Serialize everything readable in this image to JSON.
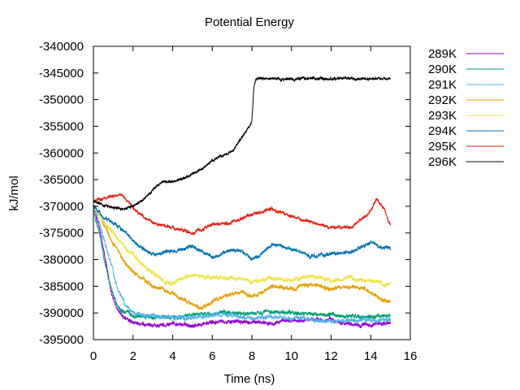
{
  "chart_data": {
    "type": "line",
    "title": "Potential Energy",
    "xlabel": "Time (ns)",
    "ylabel": "kJ/mol",
    "xlim": [
      0,
      16
    ],
    "ylim": [
      -395000,
      -340000
    ],
    "xticks": [
      0,
      2,
      4,
      6,
      8,
      10,
      12,
      14,
      16
    ],
    "yticks": [
      -340000,
      -345000,
      -350000,
      -355000,
      -360000,
      -365000,
      -370000,
      -375000,
      -380000,
      -385000,
      -390000,
      -395000
    ],
    "grid": false,
    "legend_position": "outside-right",
    "series": [
      {
        "name": "289K",
        "color": "#9400d3",
        "noise": 600,
        "points": [
          [
            0,
            -370000
          ],
          [
            0.3,
            -374000
          ],
          [
            0.6,
            -380000
          ],
          [
            0.9,
            -386000
          ],
          [
            1.2,
            -389500
          ],
          [
            1.6,
            -391000
          ],
          [
            2.0,
            -392000
          ],
          [
            3,
            -392500
          ],
          [
            4,
            -392000
          ],
          [
            5,
            -392300
          ],
          [
            6,
            -391800
          ],
          [
            7,
            -391500
          ],
          [
            8,
            -391800
          ],
          [
            9,
            -391700
          ],
          [
            10,
            -391500
          ],
          [
            11,
            -391200
          ],
          [
            12,
            -391300
          ],
          [
            13,
            -392000
          ],
          [
            14,
            -392300
          ],
          [
            15,
            -391800
          ]
        ]
      },
      {
        "name": "290K",
        "color": "#009e73",
        "noise": 600,
        "points": [
          [
            0,
            -371000
          ],
          [
            0.3,
            -375000
          ],
          [
            0.6,
            -381000
          ],
          [
            0.9,
            -385500
          ],
          [
            1.2,
            -388500
          ],
          [
            1.6,
            -390000
          ],
          [
            2.0,
            -390500
          ],
          [
            3,
            -390800
          ],
          [
            4,
            -390800
          ],
          [
            5,
            -390500
          ],
          [
            6,
            -390200
          ],
          [
            7,
            -389800
          ],
          [
            8,
            -390300
          ],
          [
            9,
            -389700
          ],
          [
            10,
            -390000
          ],
          [
            11,
            -390200
          ],
          [
            12,
            -390500
          ],
          [
            13,
            -390600
          ],
          [
            14,
            -390800
          ],
          [
            15,
            -390500
          ]
        ]
      },
      {
        "name": "291K",
        "color": "#56b4e9",
        "noise": 650,
        "points": [
          [
            0,
            -370000
          ],
          [
            0.3,
            -373000
          ],
          [
            0.6,
            -377000
          ],
          [
            0.9,
            -381000
          ],
          [
            1.2,
            -385000
          ],
          [
            1.6,
            -388500
          ],
          [
            2.0,
            -390000
          ],
          [
            3,
            -390500
          ],
          [
            4,
            -391000
          ],
          [
            5,
            -391000
          ],
          [
            6,
            -390500
          ],
          [
            7,
            -390500
          ],
          [
            8,
            -391000
          ],
          [
            9,
            -390800
          ],
          [
            10,
            -391000
          ],
          [
            11,
            -391200
          ],
          [
            12,
            -391500
          ],
          [
            13,
            -391300
          ],
          [
            14,
            -391500
          ],
          [
            15,
            -391200
          ]
        ]
      },
      {
        "name": "292K",
        "color": "#e69f00",
        "noise": 600,
        "points": [
          [
            0,
            -370000
          ],
          [
            0.5,
            -373000
          ],
          [
            1.0,
            -377000
          ],
          [
            1.5,
            -380000
          ],
          [
            2.0,
            -382500
          ],
          [
            2.5,
            -383500
          ],
          [
            3,
            -385000
          ],
          [
            3.5,
            -385500
          ],
          [
            4,
            -386500
          ],
          [
            4.5,
            -387500
          ],
          [
            5,
            -388500
          ],
          [
            5.5,
            -389000
          ],
          [
            6,
            -388000
          ],
          [
            6.5,
            -387000
          ],
          [
            7,
            -386500
          ],
          [
            7.5,
            -386000
          ],
          [
            8,
            -387000
          ],
          [
            8.5,
            -386000
          ],
          [
            9,
            -385000
          ],
          [
            10,
            -385500
          ],
          [
            11,
            -384500
          ],
          [
            12,
            -385500
          ],
          [
            13,
            -385000
          ],
          [
            14,
            -386000
          ],
          [
            14.5,
            -387500
          ],
          [
            15,
            -388000
          ]
        ]
      },
      {
        "name": "293K",
        "color": "#f0e442",
        "noise": 650,
        "points": [
          [
            0,
            -370000
          ],
          [
            0.5,
            -373000
          ],
          [
            1.0,
            -375000
          ],
          [
            1.5,
            -377500
          ],
          [
            2.0,
            -379000
          ],
          [
            2.5,
            -381000
          ],
          [
            3,
            -382500
          ],
          [
            3.5,
            -384000
          ],
          [
            4,
            -384500
          ],
          [
            4.5,
            -383500
          ],
          [
            5,
            -383000
          ],
          [
            6,
            -383500
          ],
          [
            7,
            -383500
          ],
          [
            8,
            -384000
          ],
          [
            9,
            -383500
          ],
          [
            10,
            -384000
          ],
          [
            11,
            -383000
          ],
          [
            12,
            -384000
          ],
          [
            13,
            -383500
          ],
          [
            14,
            -384000
          ],
          [
            15,
            -384500
          ]
        ]
      },
      {
        "name": "294K",
        "color": "#0072b2",
        "noise": 550,
        "points": [
          [
            0,
            -370000
          ],
          [
            0.5,
            -372000
          ],
          [
            1.0,
            -373000
          ],
          [
            1.5,
            -374500
          ],
          [
            2.0,
            -376500
          ],
          [
            2.5,
            -378000
          ],
          [
            3,
            -379000
          ],
          [
            4,
            -378500
          ],
          [
            5,
            -377500
          ],
          [
            5.5,
            -378500
          ],
          [
            6,
            -379500
          ],
          [
            7,
            -378000
          ],
          [
            7.5,
            -378500
          ],
          [
            8,
            -380000
          ],
          [
            8.5,
            -379000
          ],
          [
            9,
            -377000
          ],
          [
            10,
            -378000
          ],
          [
            11,
            -379500
          ],
          [
            12,
            -379000
          ],
          [
            13,
            -378500
          ],
          [
            14,
            -377000
          ],
          [
            14.5,
            -377500
          ],
          [
            15,
            -378000
          ]
        ]
      },
      {
        "name": "295K",
        "color": "#e51e10",
        "noise": 500,
        "points": [
          [
            0,
            -369000
          ],
          [
            0.5,
            -368500
          ],
          [
            1.0,
            -368000
          ],
          [
            1.5,
            -368000
          ],
          [
            2.0,
            -370500
          ],
          [
            2.5,
            -372000
          ],
          [
            3,
            -373000
          ],
          [
            4,
            -374000
          ],
          [
            5,
            -375000
          ],
          [
            6,
            -373500
          ],
          [
            7,
            -373000
          ],
          [
            8,
            -371500
          ],
          [
            9,
            -370500
          ],
          [
            10,
            -372000
          ],
          [
            11,
            -373000
          ],
          [
            12,
            -374000
          ],
          [
            13,
            -374000
          ],
          [
            14,
            -371000
          ],
          [
            14.3,
            -368500
          ],
          [
            14.7,
            -370500
          ],
          [
            15,
            -373500
          ]
        ]
      },
      {
        "name": "296K",
        "color": "#000000",
        "noise": 380,
        "points": [
          [
            0,
            -369000
          ],
          [
            0.5,
            -369800
          ],
          [
            1.0,
            -370200
          ],
          [
            1.5,
            -370500
          ],
          [
            2.0,
            -370000
          ],
          [
            2.5,
            -368800
          ],
          [
            3,
            -366800
          ],
          [
            3.5,
            -365500
          ],
          [
            4,
            -365500
          ],
          [
            4.5,
            -364800
          ],
          [
            5,
            -364000
          ],
          [
            5.5,
            -363000
          ],
          [
            6,
            -361500
          ],
          [
            6.5,
            -360500
          ],
          [
            7,
            -359800
          ],
          [
            7.5,
            -357000
          ],
          [
            7.9,
            -355000
          ],
          [
            8.0,
            -354000
          ],
          [
            8.1,
            -347800
          ],
          [
            8.2,
            -346200
          ],
          [
            8.5,
            -346000
          ],
          [
            9,
            -346000
          ],
          [
            10,
            -346100
          ],
          [
            11,
            -346000
          ],
          [
            12,
            -346100
          ],
          [
            13,
            -346000
          ],
          [
            14,
            -346100
          ],
          [
            15,
            -346000
          ]
        ]
      }
    ]
  }
}
